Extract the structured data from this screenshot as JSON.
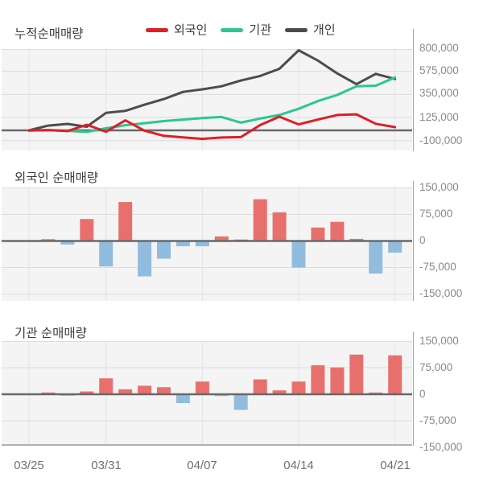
{
  "x_tick_labels": [
    "03/25",
    "03/31",
    "04/07",
    "04/14",
    "04/21"
  ],
  "chart_data": [
    {
      "type": "line",
      "title": "누적순매매량",
      "x": [
        "03/25",
        "03/26",
        "03/27",
        "03/28",
        "03/31",
        "04/01",
        "04/02",
        "04/03",
        "04/04",
        "04/07",
        "04/08",
        "04/09",
        "04/10",
        "04/11",
        "04/14",
        "04/15",
        "04/16",
        "04/17",
        "04/18",
        "04/21"
      ],
      "x_tick_labels": [
        "03/25",
        "03/31",
        "04/07",
        "04/14",
        "04/21"
      ],
      "y_ticks": [
        800000,
        575000,
        350000,
        125000,
        -100000
      ],
      "y_tick_labels": [
        "800,000",
        "575,000",
        "350,000",
        "125,000",
        "-100,000"
      ],
      "ylim": [
        -125000,
        840000
      ],
      "grid": true,
      "legend_position": "top",
      "series": [
        {
          "name": "외국인",
          "color": "#dc2027",
          "values": [
            -2000,
            3000,
            -7000,
            55000,
            -13000,
            97000,
            -3000,
            -53000,
            -68000,
            -83000,
            -70000,
            -66000,
            52000,
            133000,
            58000,
            105000,
            150000,
            156000,
            64000,
            31000
          ]
        },
        {
          "name": "기관",
          "color": "#2bc693",
          "values": [
            0,
            2000,
            -5000,
            -15000,
            20000,
            50000,
            70000,
            90000,
            105000,
            120000,
            130000,
            75000,
            115000,
            150000,
            210000,
            285000,
            345000,
            430000,
            435000,
            515000
          ]
        },
        {
          "name": "개인",
          "color": "#4c4c4e",
          "values": [
            0,
            46000,
            63000,
            35000,
            170000,
            190000,
            250000,
            305000,
            375000,
            400000,
            430000,
            485000,
            530000,
            600000,
            780000,
            680000,
            555000,
            450000,
            550000,
            500000
          ]
        }
      ]
    },
    {
      "type": "bar",
      "title": "외국인 순매매량",
      "x": [
        "03/25",
        "03/26",
        "03/27",
        "03/28",
        "03/31",
        "04/01",
        "04/02",
        "04/03",
        "04/04",
        "04/07",
        "04/08",
        "04/09",
        "04/10",
        "04/11",
        "04/14",
        "04/15",
        "04/16",
        "04/17",
        "04/18",
        "04/21"
      ],
      "y_ticks": [
        150000,
        75000,
        0,
        -75000,
        -150000
      ],
      "y_tick_labels": [
        "150,000",
        "75,000",
        "0",
        "-75,000",
        "-150,000"
      ],
      "ylim": [
        -150000,
        150000
      ],
      "positive_color": "#e8706c",
      "negative_color": "#92bcde",
      "values": [
        2000,
        5000,
        -10000,
        62000,
        -72000,
        110000,
        -100000,
        -50000,
        -15000,
        -15000,
        13000,
        4000,
        118000,
        81000,
        -75000,
        38000,
        54000,
        6000,
        -92000,
        -33000
      ]
    },
    {
      "type": "bar",
      "title": "기관 순매매량",
      "x": [
        "03/25",
        "03/26",
        "03/27",
        "03/28",
        "03/31",
        "04/01",
        "04/02",
        "04/03",
        "04/04",
        "04/07",
        "04/08",
        "04/09",
        "04/10",
        "04/11",
        "04/14",
        "04/15",
        "04/16",
        "04/17",
        "04/18",
        "04/21"
      ],
      "y_ticks": [
        150000,
        75000,
        0,
        -75000,
        -150000
      ],
      "y_tick_labels": [
        "150,000",
        "75,000",
        "0",
        "-75,000",
        "-150,000"
      ],
      "ylim": [
        -150000,
        150000
      ],
      "positive_color": "#e8706c",
      "negative_color": "#92bcde",
      "values": [
        2000,
        5000,
        -4000,
        8000,
        45000,
        14000,
        24000,
        20000,
        -25000,
        36000,
        -5000,
        -44000,
        42000,
        11000,
        36000,
        82000,
        76000,
        112000,
        5000,
        110000
      ]
    }
  ],
  "colors": {
    "plot_background": "#f4f4f4",
    "gridline": "#dcdcdc",
    "vertical_gridline": "#e3e3e3",
    "zero_line": "#68696b",
    "axis_separator": "#a8a8a8",
    "bottom_border": "#b0b0b0"
  }
}
